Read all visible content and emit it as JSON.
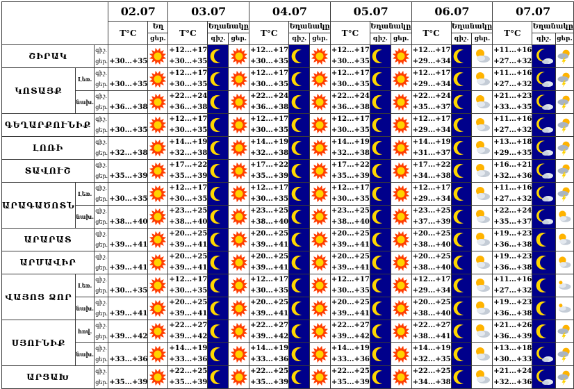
{
  "header": {
    "dates": [
      "02.07",
      "03.07",
      "04.07",
      "05.07",
      "06.07",
      "07.07"
    ],
    "temp_label": "T°C",
    "weather_label": "Եղանակը",
    "weather_label_short": "Եղ",
    "day_label": "ցեր.",
    "night_label": "գիշ."
  },
  "row_labels": {
    "night": "գիշ.",
    "day": "ցեր."
  },
  "regions": [
    {
      "name": "ՇԻՐԱԿ",
      "rows": [
        {
          "sub": "",
          "night": "",
          "day": "+30...+35",
          "forecast": [
            {
              "night": "+12...+17",
              "day": "+30...+35",
              "nicon": "moon",
              "dicon": "sun"
            },
            {
              "night": "+12...+17",
              "day": "+30...+35",
              "nicon": "moon",
              "dicon": "sun"
            },
            {
              "night": "+12...+17",
              "day": "+30...+35",
              "nicon": "moon",
              "dicon": "sun"
            },
            {
              "night": "+12...+17",
              "day": "+29...+34",
              "nicon": "moon",
              "dicon": "cloud-sun"
            },
            {
              "night": "+11...+16",
              "day": "+27...+32",
              "nicon": "moon-cloud",
              "dicon": "storm"
            }
          ]
        }
      ]
    },
    {
      "name": "ԿՈՏԱՅՔ",
      "rows": [
        {
          "sub": "Լեռ.",
          "night": "",
          "day": "+30...+35",
          "forecast": [
            {
              "night": "+12...+17",
              "day": "+30...+35",
              "nicon": "moon",
              "dicon": "sun"
            },
            {
              "night": "+12...+17",
              "day": "+30...+35",
              "nicon": "moon",
              "dicon": "sun"
            },
            {
              "night": "+12...+17",
              "day": "+30...+35",
              "nicon": "moon",
              "dicon": "sun"
            },
            {
              "night": "+12...+17",
              "day": "+29...+34",
              "nicon": "moon",
              "dicon": "cloud-sun"
            },
            {
              "night": "+11...+16",
              "day": "+27...+32",
              "nicon": "moon-cloud",
              "dicon": "storm"
            }
          ]
        },
        {
          "sub": "նախ.",
          "night": "",
          "day": "+36...+38",
          "forecast": [
            {
              "night": "+22...+24",
              "day": "+36...+38",
              "nicon": "moon",
              "dicon": "sun"
            },
            {
              "night": "+22...+24",
              "day": "+36...+38",
              "nicon": "moon",
              "dicon": "sun"
            },
            {
              "night": "+22...+24",
              "day": "+36...+38",
              "nicon": "moon",
              "dicon": "sun"
            },
            {
              "night": "+22...+24",
              "day": "+35...+37",
              "nicon": "moon",
              "dicon": "cloud-sun"
            },
            {
              "night": "+21...+23",
              "day": "+33...+35",
              "nicon": "moon-cloud",
              "dicon": "storm"
            }
          ]
        }
      ]
    },
    {
      "name": "ԳԵՂԱՐՔՈՒՆԻՔ",
      "rows": [
        {
          "sub": "",
          "night": "",
          "day": "+30...+35",
          "forecast": [
            {
              "night": "+12...+17",
              "day": "+30...+35",
              "nicon": "moon",
              "dicon": "sun"
            },
            {
              "night": "+12...+17",
              "day": "+30...+35",
              "nicon": "moon",
              "dicon": "sun"
            },
            {
              "night": "+12...+17",
              "day": "+30...+35",
              "nicon": "moon",
              "dicon": "sun"
            },
            {
              "night": "+12...+17",
              "day": "+29...+34",
              "nicon": "moon",
              "dicon": "cloud-sun"
            },
            {
              "night": "+11...+16",
              "day": "+27...+32",
              "nicon": "moon-cloud",
              "dicon": "storm"
            }
          ]
        }
      ]
    },
    {
      "name": "ԼՈՌԻ",
      "rows": [
        {
          "sub": "",
          "night": "",
          "day": "+32...+38",
          "forecast": [
            {
              "night": "+14...+19",
              "day": "+32...+38",
              "nicon": "moon",
              "dicon": "sun"
            },
            {
              "night": "+14...+19",
              "day": "+32...+38",
              "nicon": "moon",
              "dicon": "sun"
            },
            {
              "night": "+14...+19",
              "day": "+32...+38",
              "nicon": "moon",
              "dicon": "sun"
            },
            {
              "night": "+14...+19",
              "day": "+31...+37",
              "nicon": "moon",
              "dicon": "cloud-sun"
            },
            {
              "night": "+13...+18",
              "day": "+29...+35",
              "nicon": "moon-cloud",
              "dicon": "storm"
            }
          ]
        }
      ]
    },
    {
      "name": "ՏԱՎՈՒՇ",
      "rows": [
        {
          "sub": "",
          "night": "",
          "day": "+35...+39",
          "forecast": [
            {
              "night": "+17...+22",
              "day": "+35...+39",
              "nicon": "moon",
              "dicon": "sun"
            },
            {
              "night": "+17...+22",
              "day": "+35...+39",
              "nicon": "moon",
              "dicon": "sun"
            },
            {
              "night": "+17...+22",
              "day": "+35...+39",
              "nicon": "moon",
              "dicon": "sun"
            },
            {
              "night": "+17...+22",
              "day": "+34...+38",
              "nicon": "moon",
              "dicon": "cloud-sun"
            },
            {
              "night": "+16...+21",
              "day": "+32...+36",
              "nicon": "moon-cloud",
              "dicon": "storm"
            }
          ]
        }
      ]
    },
    {
      "name": "ԱՐԱԳԱԾՈՏՆ",
      "rows": [
        {
          "sub": "Լեռ.",
          "night": "",
          "day": "+30...+35",
          "forecast": [
            {
              "night": "+12...+17",
              "day": "+30...+35",
              "nicon": "moon",
              "dicon": "sun"
            },
            {
              "night": "+12...+17",
              "day": "+30...+35",
              "nicon": "moon",
              "dicon": "sun"
            },
            {
              "night": "+12...+17",
              "day": "+30...+35",
              "nicon": "moon",
              "dicon": "sun"
            },
            {
              "night": "+12...+17",
              "day": "+29...+34",
              "nicon": "moon",
              "dicon": "cloud-sun"
            },
            {
              "night": "+11...+16",
              "day": "+27...+32",
              "nicon": "moon-cloud",
              "dicon": "storm"
            }
          ]
        },
        {
          "sub": "նախ.",
          "night": "",
          "day": "+38...+40",
          "forecast": [
            {
              "night": "+23...+25",
              "day": "+38...+40",
              "nicon": "moon",
              "dicon": "sun"
            },
            {
              "night": "+23...+25",
              "day": "+38...+40",
              "nicon": "moon",
              "dicon": "sun"
            },
            {
              "night": "+23...+25",
              "day": "+38...+40",
              "nicon": "moon",
              "dicon": "sun"
            },
            {
              "night": "+23...+25",
              "day": "+37...+39",
              "nicon": "moon",
              "dicon": "cloud-sun"
            },
            {
              "night": "+22...+24",
              "day": "+35...+37",
              "nicon": "moon-cloud",
              "dicon": "cloud-sun"
            }
          ]
        }
      ]
    },
    {
      "name": "ԱՐԱՐԱՏ",
      "rows": [
        {
          "sub": "",
          "night": "",
          "day": "+39...+41",
          "forecast": [
            {
              "night": "+20...+25",
              "day": "+39...+41",
              "nicon": "moon",
              "dicon": "sun"
            },
            {
              "night": "+20...+25",
              "day": "+39...+41",
              "nicon": "moon",
              "dicon": "sun"
            },
            {
              "night": "+20...+25",
              "day": "+39...+41",
              "nicon": "moon",
              "dicon": "sun"
            },
            {
              "night": "+20...+25",
              "day": "+38...+40",
              "nicon": "moon",
              "dicon": "cloud-sun"
            },
            {
              "night": "+19...+23",
              "day": "+36...+38",
              "nicon": "moon",
              "dicon": "cloud-sun"
            }
          ]
        }
      ]
    },
    {
      "name": "ԱՐՄԱՎԻՐ",
      "rows": [
        {
          "sub": "",
          "night": "",
          "day": "+39...+41",
          "forecast": [
            {
              "night": "+20...+25",
              "day": "+39...+41",
              "nicon": "moon",
              "dicon": "sun"
            },
            {
              "night": "+20...+25",
              "day": "+39...+41",
              "nicon": "moon",
              "dicon": "sun"
            },
            {
              "night": "+20...+25",
              "day": "+39...+41",
              "nicon": "moon",
              "dicon": "sun"
            },
            {
              "night": "+20...+25",
              "day": "+38...+40",
              "nicon": "moon",
              "dicon": "cloud-sun"
            },
            {
              "night": "+19...+23",
              "day": "+36...+38",
              "nicon": "moon",
              "dicon": "cloud-sun"
            }
          ]
        }
      ]
    },
    {
      "name": "ՎԱՅՈՑ ՁՈՐ",
      "rows": [
        {
          "sub": "Լեռ.",
          "night": "",
          "day": "+30...+35",
          "forecast": [
            {
              "night": "+12...+17",
              "day": "+30...+35",
              "nicon": "moon",
              "dicon": "sun"
            },
            {
              "night": "+12...+17",
              "day": "+30...+35",
              "nicon": "moon",
              "dicon": "sun"
            },
            {
              "night": "+12...+17",
              "day": "+30...+35",
              "nicon": "moon",
              "dicon": "sun"
            },
            {
              "night": "+12...+17",
              "day": "+29...+34",
              "nicon": "moon",
              "dicon": "cloud-sun"
            },
            {
              "night": "+11...+16",
              "day": "+27...+32",
              "nicon": "moon",
              "dicon": "cloud"
            }
          ]
        },
        {
          "sub": "նախ.",
          "night": "",
          "day": "+39...+41",
          "forecast": [
            {
              "night": "+20...+25",
              "day": "+39...+41",
              "nicon": "moon",
              "dicon": "sun"
            },
            {
              "night": "+20...+25",
              "day": "+39...+41",
              "nicon": "moon",
              "dicon": "sun"
            },
            {
              "night": "+20...+25",
              "day": "+39...+41",
              "nicon": "moon",
              "dicon": "sun"
            },
            {
              "night": "+20...+25",
              "day": "+38...+40",
              "nicon": "moon",
              "dicon": "cloud-sun"
            },
            {
              "night": "+19...+23",
              "day": "+36...+38",
              "nicon": "moon",
              "dicon": "cloud"
            }
          ]
        }
      ]
    },
    {
      "name": "ՍՅՈՒՆԻՔ",
      "rows": [
        {
          "sub": "հով.",
          "night": "",
          "day": "+39...+42",
          "forecast": [
            {
              "night": "+22...+27",
              "day": "+39...+42",
              "nicon": "moon",
              "dicon": "sun"
            },
            {
              "night": "+22...+27",
              "day": "+39...+42",
              "nicon": "moon",
              "dicon": "sun"
            },
            {
              "night": "+22...+27",
              "day": "+39...+42",
              "nicon": "moon",
              "dicon": "sun"
            },
            {
              "night": "+22...+27",
              "day": "+38...+41",
              "nicon": "moon",
              "dicon": "cloud-sun"
            },
            {
              "night": "+21...+26",
              "day": "+36...+39",
              "nicon": "moon",
              "dicon": "storm"
            }
          ]
        },
        {
          "sub": "նախ.",
          "night": "",
          "day": "+33...+36",
          "forecast": [
            {
              "night": "+14...+19",
              "day": "+33...+36",
              "nicon": "moon",
              "dicon": "sun"
            },
            {
              "night": "+14...+19",
              "day": "+33...+36",
              "nicon": "moon",
              "dicon": "sun"
            },
            {
              "night": "+14...+19",
              "day": "+33...+36",
              "nicon": "moon",
              "dicon": "sun"
            },
            {
              "night": "+14...+19",
              "day": "+32...+35",
              "nicon": "moon",
              "dicon": "cloud-sun"
            },
            {
              "night": "+13...+18",
              "day": "+30...+33",
              "nicon": "moon-cloud",
              "dicon": "storm"
            }
          ]
        }
      ]
    },
    {
      "name": "ԱՐՑԱԽ",
      "rows": [
        {
          "sub": "",
          "night": "",
          "day": "+35...+39",
          "forecast": [
            {
              "night": "+22...+25",
              "day": "+35...+39",
              "nicon": "moon",
              "dicon": "sun"
            },
            {
              "night": "+22...+25",
              "day": "+35...+39",
              "nicon": "moon",
              "dicon": "sun"
            },
            {
              "night": "+22...+25",
              "day": "+35...+39",
              "nicon": "moon",
              "dicon": "sun"
            },
            {
              "night": "+22...+25",
              "day": "+34...+38",
              "nicon": "moon",
              "dicon": "cloud-sun"
            },
            {
              "night": "+21...+24",
              "day": "+32...+36",
              "nicon": "moon-cloud",
              "dicon": "storm"
            }
          ]
        }
      ]
    }
  ],
  "colors": {
    "night_bg": "#00008b",
    "moon": "#ffd700",
    "sun": "#ff3c00",
    "sun_core": "#ffd200"
  }
}
